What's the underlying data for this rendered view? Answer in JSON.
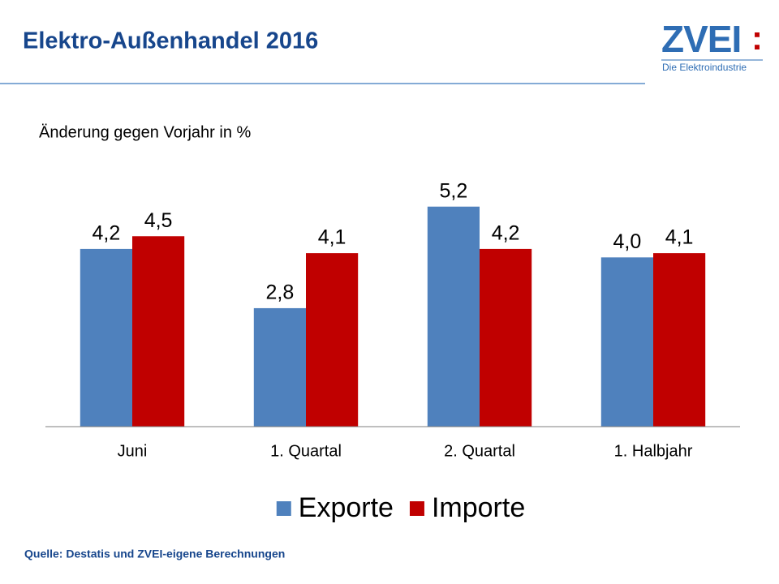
{
  "header": {
    "title": "Elektro-Außenhandel 2016",
    "logo": {
      "name": "ZVEI",
      "colon": ":",
      "tagline": "Die Elektroindustrie"
    }
  },
  "chart_data": {
    "type": "bar",
    "subtitle": "Änderung gegen Vorjahr in %",
    "categories": [
      "Juni",
      "1. Quartal",
      "2. Quartal",
      "1. Halbjahr"
    ],
    "series": [
      {
        "name": "Exporte",
        "color": "#4f81bd",
        "values": [
          4.2,
          2.8,
          5.2,
          4.0
        ],
        "value_labels": [
          "4,2",
          "2,8",
          "5,2",
          "4,0"
        ]
      },
      {
        "name": "Importe",
        "color": "#c00000",
        "values": [
          4.5,
          4.1,
          4.2,
          4.1
        ],
        "value_labels": [
          "4,5",
          "4,1",
          "4,2",
          "4,1"
        ]
      }
    ],
    "ylim": [
      0,
      6
    ],
    "legend": "bottom"
  },
  "footer": {
    "source": "Quelle: Destatis und ZVEI-eigene Berechnungen"
  }
}
